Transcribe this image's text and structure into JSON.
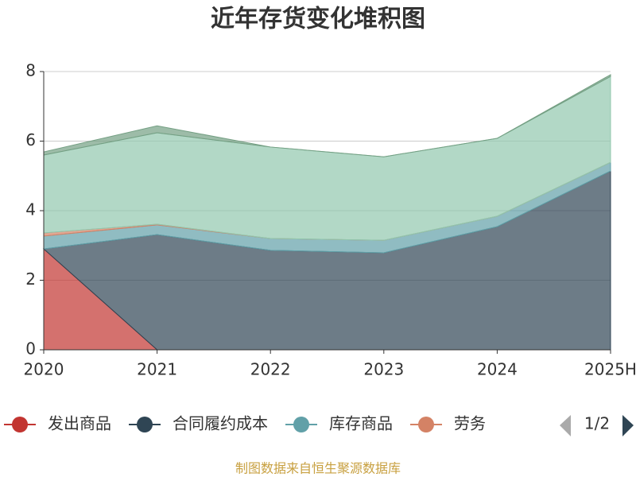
{
  "chart_data": {
    "type": "stacked_area",
    "title": "近年存货变化堆积图",
    "categories": [
      "2020",
      "2021",
      "2022",
      "2023",
      "2024",
      "2025H"
    ],
    "series": [
      {
        "name": "发出商品",
        "color": "#c23531",
        "values": [
          2.9,
          0,
          0,
          0,
          0,
          0
        ]
      },
      {
        "name": "合同履约成本",
        "color": "#2f4554",
        "values": [
          0,
          3.31,
          2.86,
          2.79,
          3.54,
          5.14
        ]
      },
      {
        "name": "库存商品",
        "color": "#61a0a8",
        "values": [
          0.37,
          0.28,
          0.34,
          0.36,
          0.3,
          0.25
        ]
      },
      {
        "name": "劳务",
        "color": "#d48265",
        "values": [
          0.09,
          0.02,
          0,
          0,
          0,
          0
        ]
      },
      {
        "color": "#91c7ae",
        "values": [
          2.24,
          2.63,
          2.63,
          2.4,
          2.24,
          2.47
        ]
      },
      {
        "color": "#749f83",
        "values": [
          0.09,
          0.2,
          0,
          0,
          0,
          0.05
        ]
      }
    ],
    "ylim": [
      0,
      8
    ],
    "yticks": [
      0,
      2,
      4,
      6,
      8
    ],
    "grid": true,
    "legend_page": "1/2",
    "source": "制图数据来自恒生聚源数据库"
  }
}
